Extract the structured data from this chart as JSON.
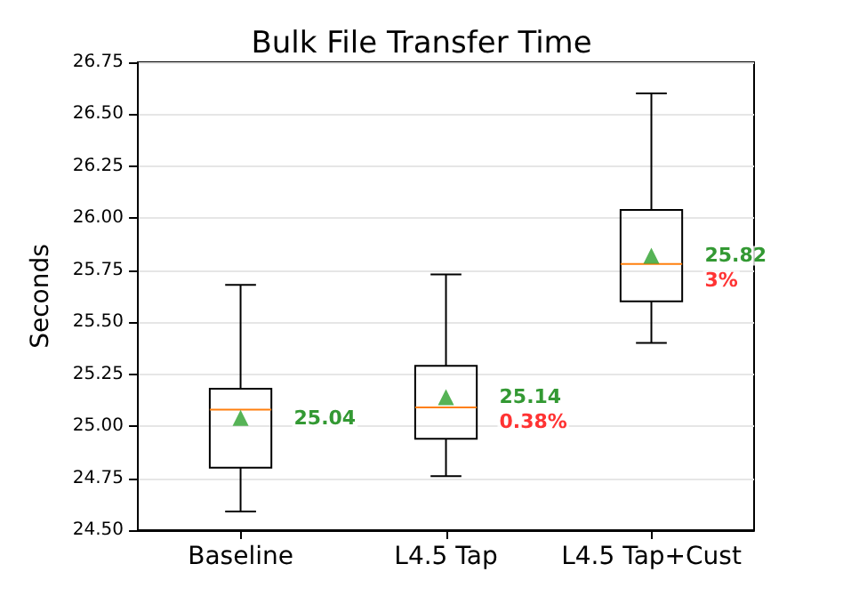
{
  "chart_data": {
    "type": "box",
    "title": "Bulk File Transfer Time",
    "ylabel": "Seconds",
    "categories": [
      "Baseline",
      "L4.5 Tap",
      "L4.5 Tap+Cust"
    ],
    "boxes": [
      {
        "low": 24.59,
        "q1": 24.8,
        "median": 25.08,
        "q3": 25.18,
        "high": 25.68,
        "mean": 25.04
      },
      {
        "low": 24.76,
        "q1": 24.94,
        "median": 25.09,
        "q3": 25.29,
        "high": 25.73,
        "mean": 25.14
      },
      {
        "low": 25.4,
        "q1": 25.6,
        "median": 25.78,
        "q3": 26.04,
        "high": 26.6,
        "mean": 25.82
      }
    ],
    "ylim": [
      24.5,
      26.75
    ],
    "yticks": [
      {
        "value": 24.5,
        "label": "24.50"
      },
      {
        "value": 24.75,
        "label": "24.75"
      },
      {
        "value": 25,
        "label": "25.00"
      },
      {
        "value": 25.25,
        "label": "25.25"
      },
      {
        "value": 25.5,
        "label": "25.50"
      },
      {
        "value": 25.75,
        "label": "25.75"
      },
      {
        "value": 26,
        "label": "26.00"
      },
      {
        "value": 26.25,
        "label": "26.25"
      },
      {
        "value": 26.5,
        "label": "26.50"
      },
      {
        "value": 26.75,
        "label": "26.75"
      }
    ],
    "grid": "y",
    "marker": "triangle",
    "annotations": [
      "25.04",
      "25.14",
      "25.82",
      "0.38%",
      "3%"
    ]
  }
}
